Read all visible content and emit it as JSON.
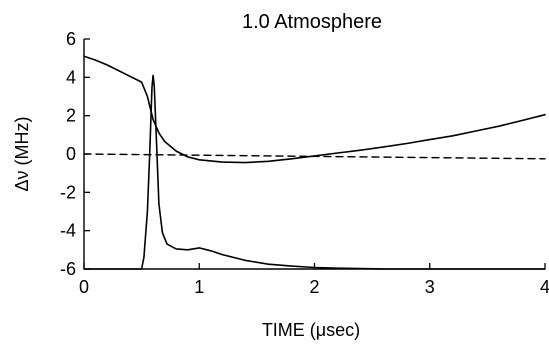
{
  "chart_data": {
    "type": "line",
    "title": "1.0 Atmosphere",
    "xlabel": "TIME (μsec)",
    "ylabel": "Δν (MHz)",
    "xlim": [
      0,
      4
    ],
    "ylim": [
      -6,
      6
    ],
    "xticks": [
      0,
      1,
      2,
      3,
      4
    ],
    "yticks": [
      -6,
      -4,
      -2,
      0,
      2,
      4,
      6
    ],
    "xtick_labels": [
      "0",
      "1",
      "2",
      "3",
      "4"
    ],
    "ytick_labels": [
      "-6",
      "-4",
      "-2",
      "0",
      "2",
      "4",
      "6"
    ],
    "grid": false,
    "series": [
      {
        "style": "solid",
        "x": [
          0,
          0.1,
          0.2,
          0.3,
          0.4,
          0.5,
          0.55,
          0.6,
          0.65,
          0.7,
          0.8,
          0.9,
          1.0,
          1.2,
          1.4,
          1.6,
          1.8,
          2.0,
          2.2,
          2.4,
          2.6,
          2.8,
          3.0,
          3.2,
          3.4,
          3.6,
          3.8,
          4.0
        ],
        "y": [
          5.1,
          4.9,
          4.65,
          4.35,
          4.05,
          3.75,
          3.0,
          1.8,
          1.1,
          0.65,
          0.15,
          -0.15,
          -0.3,
          -0.42,
          -0.45,
          -0.38,
          -0.25,
          -0.1,
          0.05,
          0.2,
          0.37,
          0.55,
          0.75,
          0.95,
          1.2,
          1.45,
          1.75,
          2.05
        ]
      },
      {
        "style": "solid",
        "x": [
          0,
          0.3,
          0.5,
          0.52,
          0.55,
          0.57,
          0.59,
          0.6,
          0.61,
          0.63,
          0.65,
          0.68,
          0.72,
          0.8,
          0.9,
          1.0,
          1.1,
          1.2,
          1.4,
          1.6,
          1.8,
          2.0,
          2.2,
          2.4,
          2.6,
          3.0,
          3.5,
          4.0
        ],
        "y": [
          -6.0,
          -6.0,
          -6.0,
          -5.4,
          -3.0,
          0.0,
          3.5,
          4.1,
          3.5,
          0.5,
          -2.6,
          -4.1,
          -4.7,
          -4.95,
          -5.0,
          -4.9,
          -5.05,
          -5.25,
          -5.55,
          -5.75,
          -5.85,
          -5.92,
          -5.96,
          -5.98,
          -6.0,
          -6.0,
          -6.0,
          -6.0
        ]
      },
      {
        "style": "dashed",
        "x": [
          0,
          4
        ],
        "y": [
          0,
          -0.25
        ]
      }
    ]
  }
}
